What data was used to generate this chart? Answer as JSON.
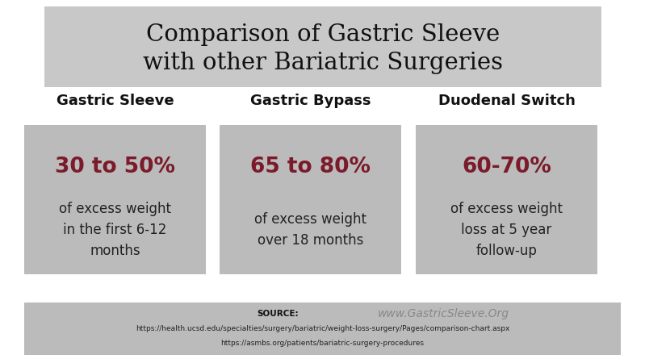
{
  "title_line1": "Comparison of Gastric Sleeve",
  "title_line2": "with other Bariatric Surgeries",
  "title_bg": "#c8c8c8",
  "title_fontsize": 21,
  "columns": [
    {
      "header": "Gastric Sleeve",
      "highlight": "30 to 50%",
      "body": "of excess weight\nin the first 6-12\nmonths"
    },
    {
      "header": "Gastric Bypass",
      "highlight": "65 to 80%",
      "body": "of excess weight\nover 18 months"
    },
    {
      "header": "Duodenal Switch",
      "highlight": "60-70%",
      "body": "of excess weight\nloss at 5 year\nfollow-up"
    }
  ],
  "box_bg": "#bbbbbb",
  "highlight_color": "#7b1a2a",
  "header_color": "#111111",
  "body_color": "#222222",
  "highlight_fontsize": 19,
  "body_fontsize": 12,
  "header_fontsize": 13,
  "footer_bg": "#bbbbbb",
  "footer_source_label": "SOURCE:",
  "footer_url1": "https://health.ucsd.edu/specialties/surgery/bariatric/weight-loss-surgery/Pages/comparison-chart.aspx",
  "footer_url2": "https://asmbs.org/patients/bariatric-surgery-procedures",
  "footer_brand": "www.GastricSleeve.Org",
  "footer_fontsize": 6.5,
  "footer_brand_fontsize": 10,
  "bg_color": "#ffffff"
}
